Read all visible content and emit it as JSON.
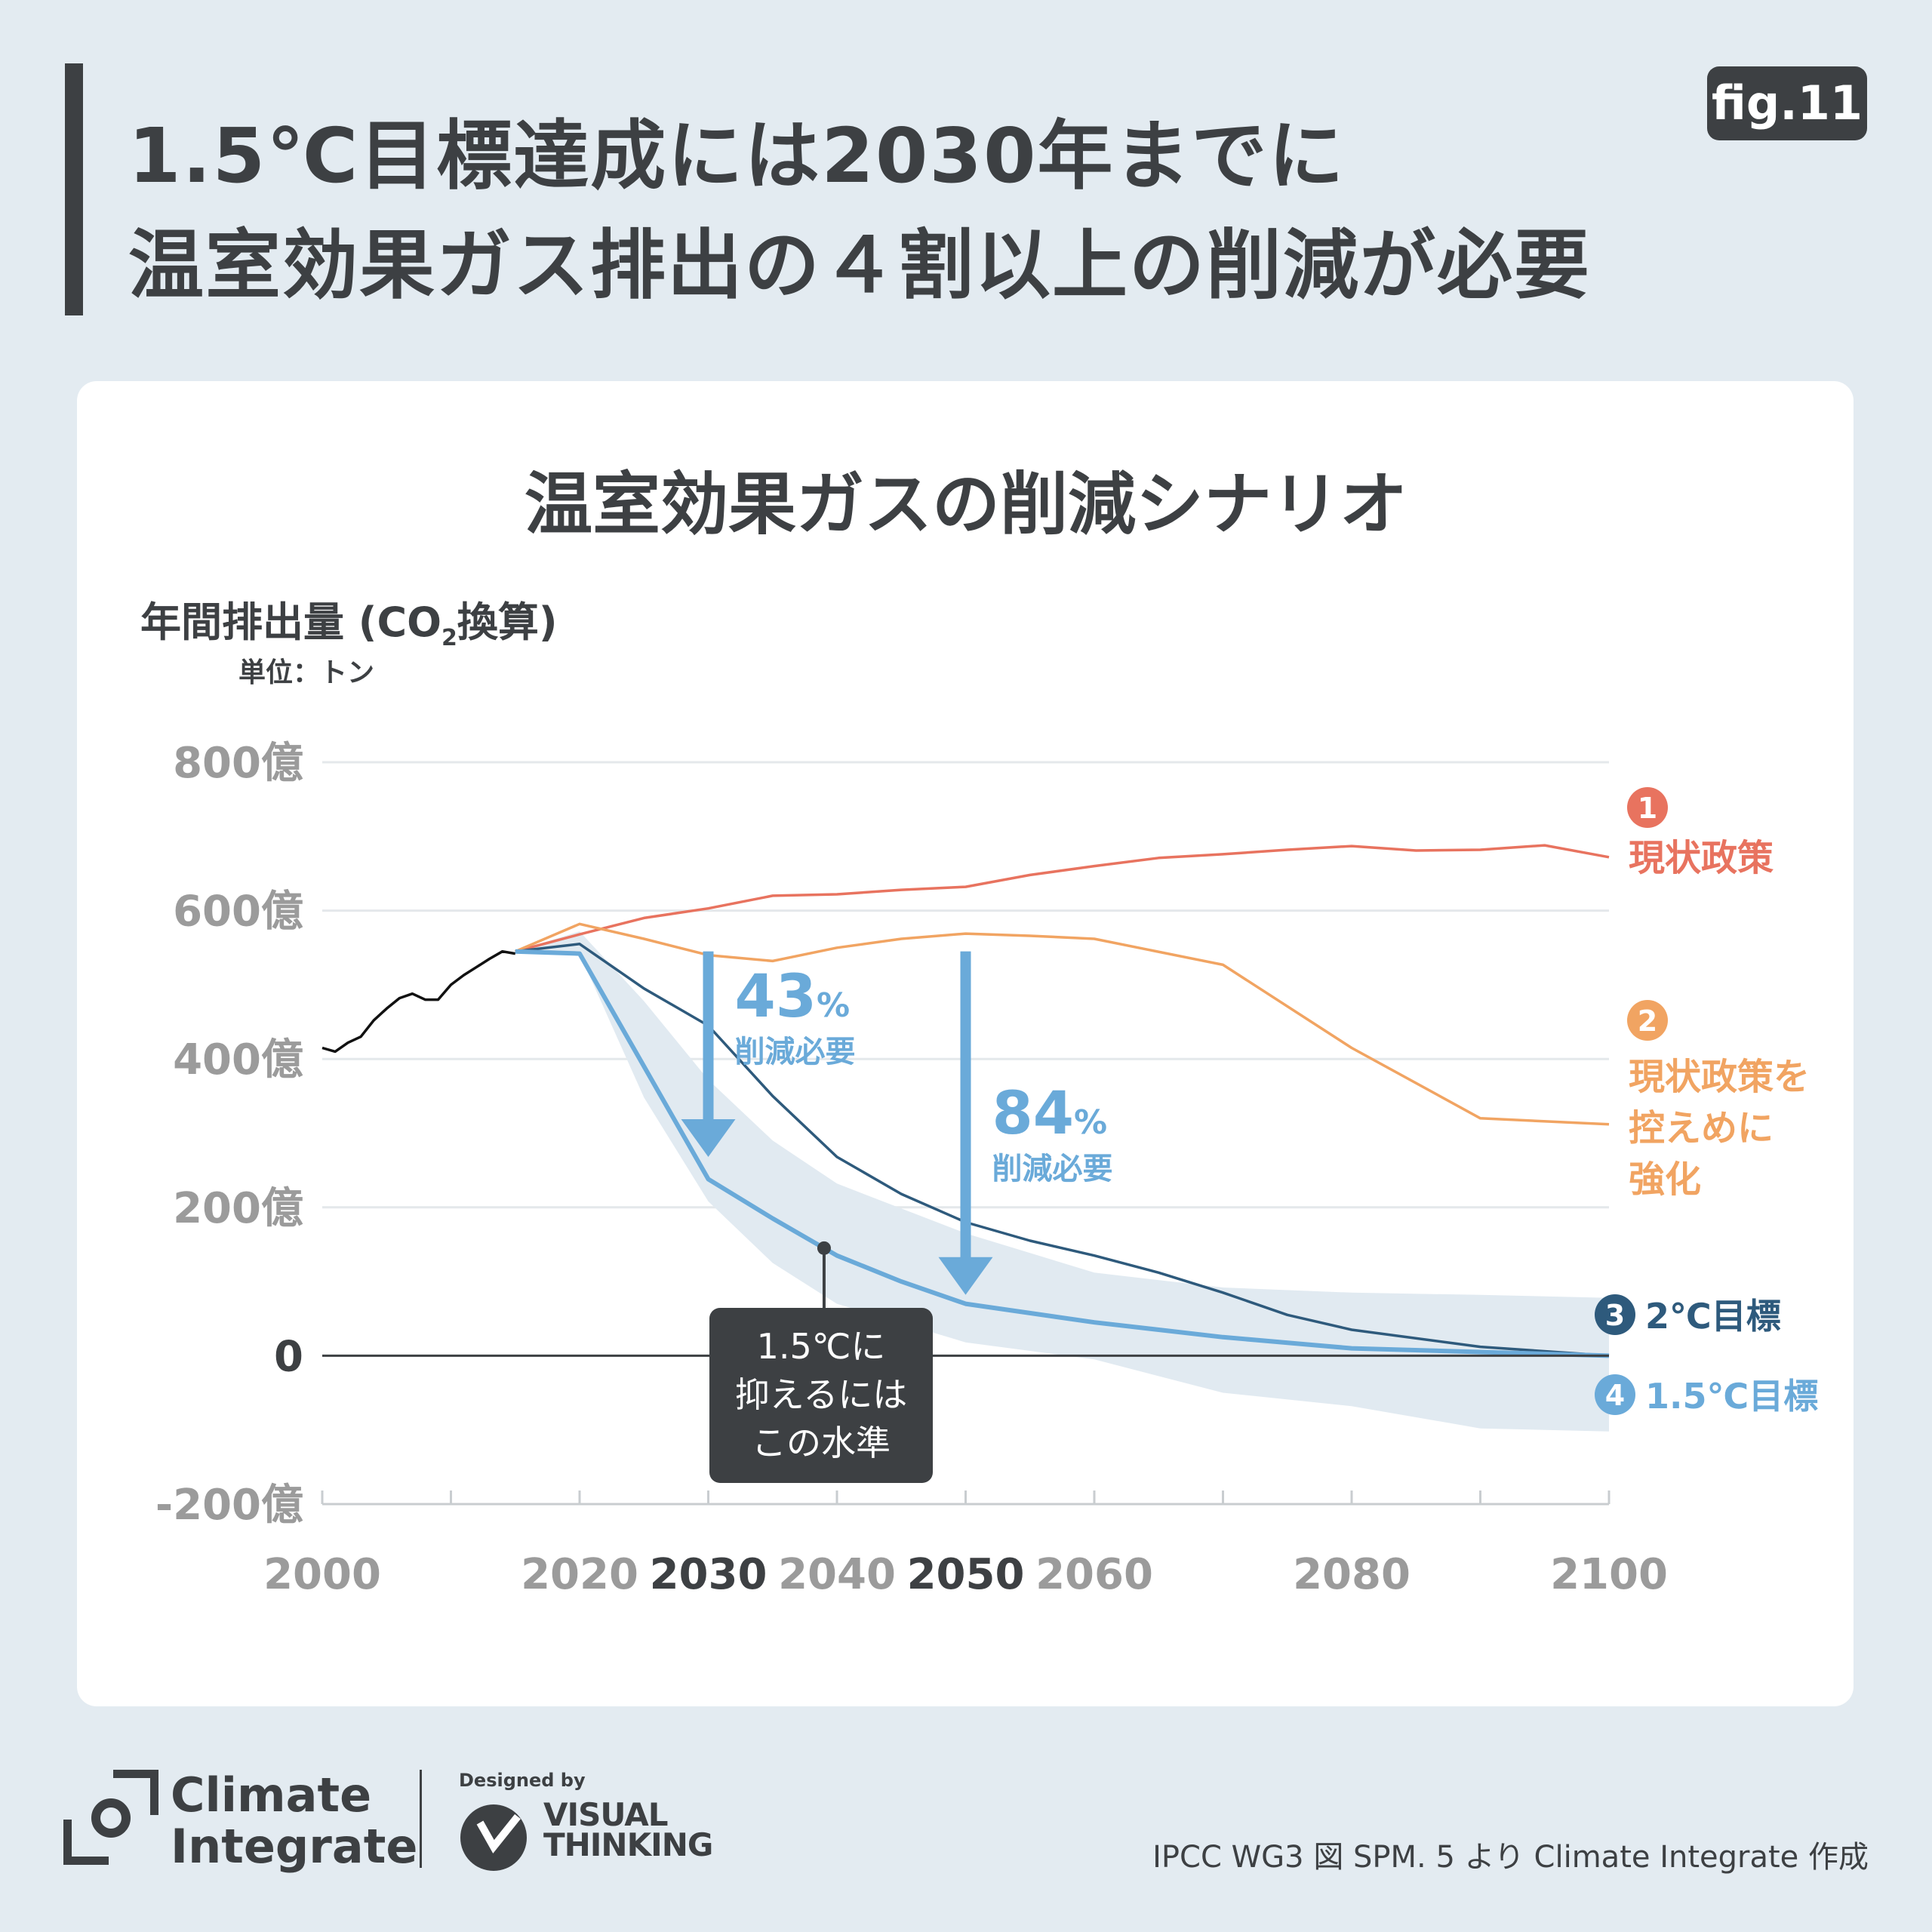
{
  "header": {
    "title_line1": "1.5℃目標達成には2030年までに",
    "title_line2": "温室効果ガス排出の４割以上の削減が必要",
    "fig_label": "fig.11"
  },
  "chart_data": {
    "type": "line",
    "title": "温室効果ガスの削減シナリオ",
    "ylabel_main": "年間排出量 (CO",
    "ylabel_sub": "2",
    "ylabel_end": "換算)",
    "yunit": "単位：トン",
    "xlim": [
      2000,
      2100
    ],
    "ylim": [
      -200,
      800
    ],
    "x_ticks": [
      {
        "label": "2000",
        "value": 2000,
        "bold": false
      },
      {
        "label": "2020",
        "value": 2020,
        "bold": false
      },
      {
        "label": "2030",
        "value": 2030,
        "bold": true
      },
      {
        "label": "2040",
        "value": 2040,
        "bold": false
      },
      {
        "label": "2050",
        "value": 2050,
        "bold": true
      },
      {
        "label": "2060",
        "value": 2060,
        "bold": false
      },
      {
        "label": "2080",
        "value": 2080,
        "bold": false
      },
      {
        "label": "2100",
        "value": 2100,
        "bold": false
      }
    ],
    "y_ticks": [
      {
        "label": "800億",
        "value": 800
      },
      {
        "label": "600億",
        "value": 600
      },
      {
        "label": "400億",
        "value": 400
      },
      {
        "label": "200億",
        "value": 200
      },
      {
        "label": "0",
        "value": 0
      },
      {
        "label": "-200億",
        "value": -200
      }
    ],
    "historical": {
      "color": "#111111",
      "x": [
        2000,
        2001,
        2002,
        2003,
        2004,
        2005,
        2006,
        2007,
        2008,
        2009,
        2010,
        2011,
        2012,
        2013,
        2014,
        2015
      ],
      "y": [
        415,
        410,
        422,
        430,
        452,
        468,
        482,
        488,
        480,
        480,
        500,
        513,
        524,
        535,
        545,
        542
      ]
    },
    "series": [
      {
        "number": "1",
        "name": "現状政策",
        "color": "#e8735f",
        "x": [
          2015,
          2020,
          2025,
          2030,
          2035,
          2040,
          2045,
          2050,
          2055,
          2060,
          2065,
          2070,
          2075,
          2080,
          2085,
          2090,
          2095,
          2100
        ],
        "y": [
          545,
          568,
          590,
          603,
          620,
          622,
          628,
          632,
          648,
          660,
          671,
          676,
          682,
          687,
          681,
          682,
          688,
          672
        ]
      },
      {
        "number": "2",
        "name": "現状政策を控えめに強化",
        "name_lines": [
          "現状政策を",
          "控えめに",
          "強化"
        ],
        "color": "#f1a462",
        "x": [
          2015,
          2020,
          2025,
          2030,
          2035,
          2040,
          2045,
          2050,
          2055,
          2060,
          2070,
          2080,
          2090,
          2100
        ],
        "y": [
          545,
          582,
          562,
          540,
          532,
          550,
          562,
          569,
          566,
          562,
          527,
          415,
          320,
          312
        ]
      },
      {
        "number": "3",
        "name": "2℃目標",
        "color": "#2e5a7c",
        "x": [
          2015,
          2020,
          2025,
          2030,
          2035,
          2040,
          2045,
          2050,
          2055,
          2060,
          2065,
          2070,
          2075,
          2080,
          2090,
          2100
        ],
        "y": [
          545,
          555,
          495,
          445,
          350,
          268,
          218,
          180,
          155,
          135,
          112,
          85,
          55,
          35,
          12,
          0
        ]
      },
      {
        "number": "4",
        "name": "1.5℃目標",
        "color": "#6aaad9",
        "x": [
          2015,
          2020,
          2025,
          2030,
          2035,
          2040,
          2045,
          2050,
          2060,
          2070,
          2080,
          2090,
          2100
        ],
        "y": [
          545,
          542,
          390,
          238,
          185,
          135,
          100,
          70,
          45,
          25,
          10,
          5,
          0
        ]
      }
    ],
    "range_band": {
      "color": "#e1eaf1",
      "x": [
        2015,
        2020,
        2025,
        2030,
        2035,
        2040,
        2050,
        2060,
        2070,
        2080,
        2090,
        2100
      ],
      "upper": [
        545,
        572,
        478,
        372,
        290,
        232,
        165,
        112,
        92,
        85,
        82,
        78
      ],
      "lower": [
        545,
        542,
        348,
        208,
        125,
        70,
        18,
        -5,
        -50,
        -68,
        -98,
        -102
      ]
    },
    "annotations": [
      {
        "pct": "43",
        "suffix": "%",
        "text": "削減必要",
        "x": 2030,
        "y_from": 545,
        "y_to": 268
      },
      {
        "pct": "84",
        "suffix": "%",
        "text": "削減必要",
        "x": 2050,
        "y_from": 545,
        "y_to": 82
      }
    ],
    "callout": {
      "lines": [
        "1.5℃に",
        "抑えるには",
        "この水準"
      ],
      "x": 2039,
      "y": 145
    }
  },
  "footer": {
    "brand_line1": "Climate",
    "brand_line2": "Integrate",
    "designed_by": "Designed by",
    "vt_line1": "VISUAL",
    "vt_line2": "THINKING",
    "source": "IPCC WG3 図 SPM. 5 より Climate Integrate 作成"
  }
}
